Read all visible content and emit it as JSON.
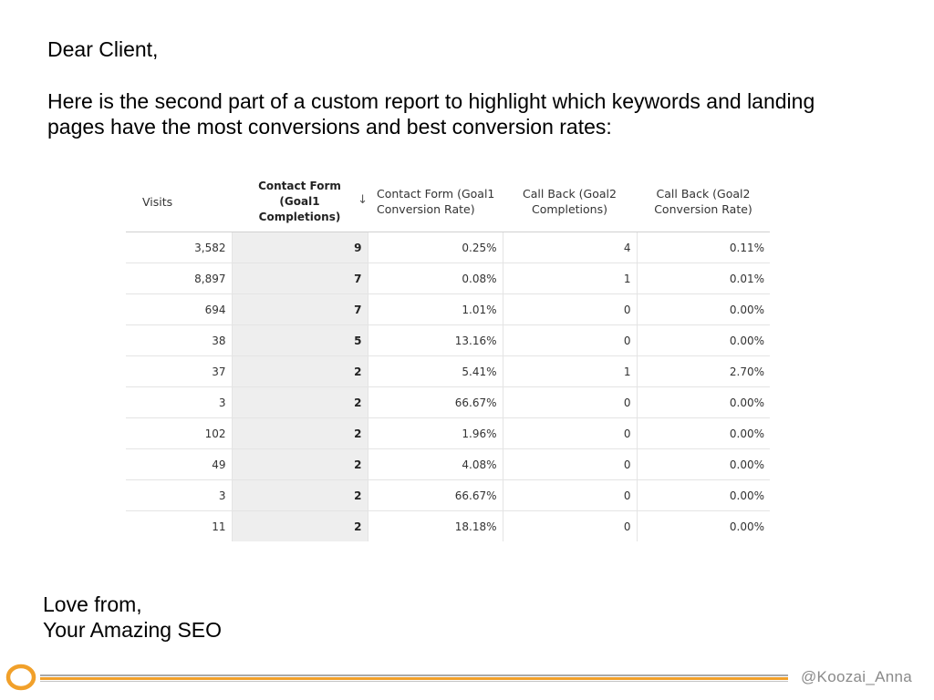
{
  "letter": {
    "greeting": "Dear Client,",
    "intro": "Here is the second part of a custom report to highlight which keywords and landing pages have the most conversions and best conversion rates:",
    "signoff_line1": "Love from,",
    "signoff_line2": "Your Amazing SEO"
  },
  "report": {
    "headers": {
      "visits": "Visits",
      "contact_form_completions": "Contact Form (Goal1 Completions)",
      "sort_indicator": "↓",
      "contact_form_rate": "Contact Form (Goal1 Conversion Rate)",
      "call_back_completions": "Call Back (Goal2 Completions)",
      "call_back_rate": "Call Back (Goal2 Conversion Rate)"
    },
    "rows": [
      {
        "visits": "3,582",
        "cf": "9",
        "cf_rate": "0.25%",
        "cb": "4",
        "cb_rate": "0.11%"
      },
      {
        "visits": "8,897",
        "cf": "7",
        "cf_rate": "0.08%",
        "cb": "1",
        "cb_rate": "0.01%"
      },
      {
        "visits": "694",
        "cf": "7",
        "cf_rate": "1.01%",
        "cb": "0",
        "cb_rate": "0.00%"
      },
      {
        "visits": "38",
        "cf": "5",
        "cf_rate": "13.16%",
        "cb": "0",
        "cb_rate": "0.00%"
      },
      {
        "visits": "37",
        "cf": "2",
        "cf_rate": "5.41%",
        "cb": "1",
        "cb_rate": "2.70%"
      },
      {
        "visits": "3",
        "cf": "2",
        "cf_rate": "66.67%",
        "cb": "0",
        "cb_rate": "0.00%"
      },
      {
        "visits": "102",
        "cf": "2",
        "cf_rate": "1.96%",
        "cb": "0",
        "cb_rate": "0.00%"
      },
      {
        "visits": "49",
        "cf": "2",
        "cf_rate": "4.08%",
        "cb": "0",
        "cb_rate": "0.00%"
      },
      {
        "visits": "3",
        "cf": "2",
        "cf_rate": "66.67%",
        "cb": "0",
        "cb_rate": "0.00%"
      },
      {
        "visits": "11",
        "cf": "2",
        "cf_rate": "18.18%",
        "cb": "0",
        "cb_rate": "0.00%"
      }
    ]
  },
  "footer": {
    "handle": "@Koozai_Anna",
    "logo_icon": "koozai-ring-logo-icon",
    "colors": {
      "accent": "#f1a02a",
      "line": "#a9a9a9"
    }
  }
}
